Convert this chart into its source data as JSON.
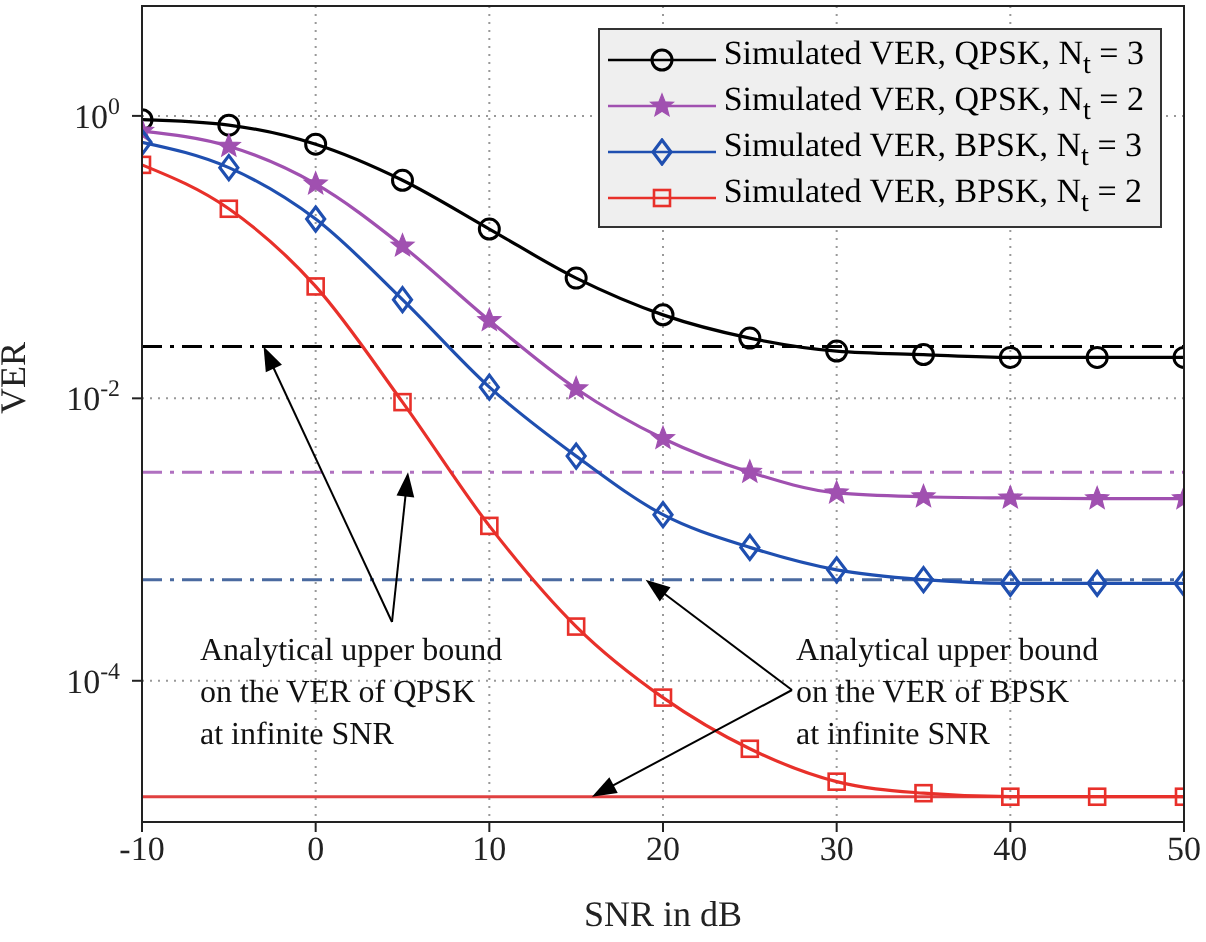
{
  "chart_data": {
    "type": "line",
    "xlabel": "SNR in dB",
    "ylabel": "VER",
    "x": [
      -10,
      -5,
      0,
      5,
      10,
      15,
      20,
      25,
      30,
      35,
      40,
      45,
      50
    ],
    "series": [
      {
        "name": "Simulated VER, QPSK, N$_{t}$ = 3",
        "color": "#000000",
        "marker": "circle",
        "values": [
          0.94,
          0.86,
          0.63,
          0.35,
          0.158,
          0.071,
          0.039,
          0.0267,
          0.0216,
          0.0204,
          0.0195,
          0.0195,
          0.0195
        ]
      },
      {
        "name": "Simulated VER, QPSK, N$_{t}$ = 2",
        "color": "#a050b0",
        "marker": "star",
        "values": [
          0.78,
          0.61,
          0.33,
          0.12,
          0.0356,
          0.0117,
          0.0052,
          0.003,
          0.00214,
          0.00201,
          0.00197,
          0.00195,
          0.00195
        ]
      },
      {
        "name": "Simulated VER, BPSK, N$_{t}$ = 3",
        "color": "#1f4fb0",
        "marker": "diamond",
        "values": [
          0.65,
          0.43,
          0.186,
          0.05,
          0.012,
          0.0039,
          0.0015,
          0.00088,
          0.00061,
          0.00052,
          0.00049,
          0.00049,
          0.00049
        ]
      },
      {
        "name": "Simulated VER, BPSK, N$_{t}$ = 2",
        "color": "#e8302a",
        "marker": "square",
        "values": [
          0.45,
          0.22,
          0.062,
          0.0094,
          0.00125,
          0.000242,
          7.6e-05,
          3.3e-05,
          1.93e-05,
          1.6e-05,
          1.51e-05,
          1.51e-05,
          1.51e-05
        ]
      }
    ],
    "ref_lines": [
      {
        "axis": "y",
        "value": 0.0233,
        "color": "#000000",
        "line_style": "dashed"
      },
      {
        "axis": "y",
        "value": 0.003,
        "color": "#b070c0",
        "line_style": "dashed"
      },
      {
        "axis": "y",
        "value": 0.00052,
        "color": "#4a6aa0",
        "line_style": "dashed"
      },
      {
        "axis": "y",
        "value": 1.51e-05,
        "color": "#e04040",
        "line_style": "solid"
      }
    ],
    "annotations": [
      {
        "text": "Analytical upper bound on the VER of QPSK at infinite SNR",
        "x": -3,
        "y": 0.0233
      },
      {
        "text": "Analytical upper bound on the VER of BPSK at infinite SNR",
        "x": 19,
        "y": 0.00052
      }
    ],
    "log": "y",
    "grid": true,
    "legend": "top right",
    "xlim": [
      -10,
      50
    ],
    "xticks": [
      -10,
      0,
      10,
      20,
      30,
      40,
      50
    ],
    "ylim": [
      1e-05,
      6
    ],
    "yticks": [
      {
        "value": 1,
        "label": "10$^{0}$"
      },
      {
        "value": 0.01,
        "label": "10$^{-2}$"
      },
      {
        "value": 0.0001,
        "label": "10$^{-4}$"
      }
    ]
  }
}
